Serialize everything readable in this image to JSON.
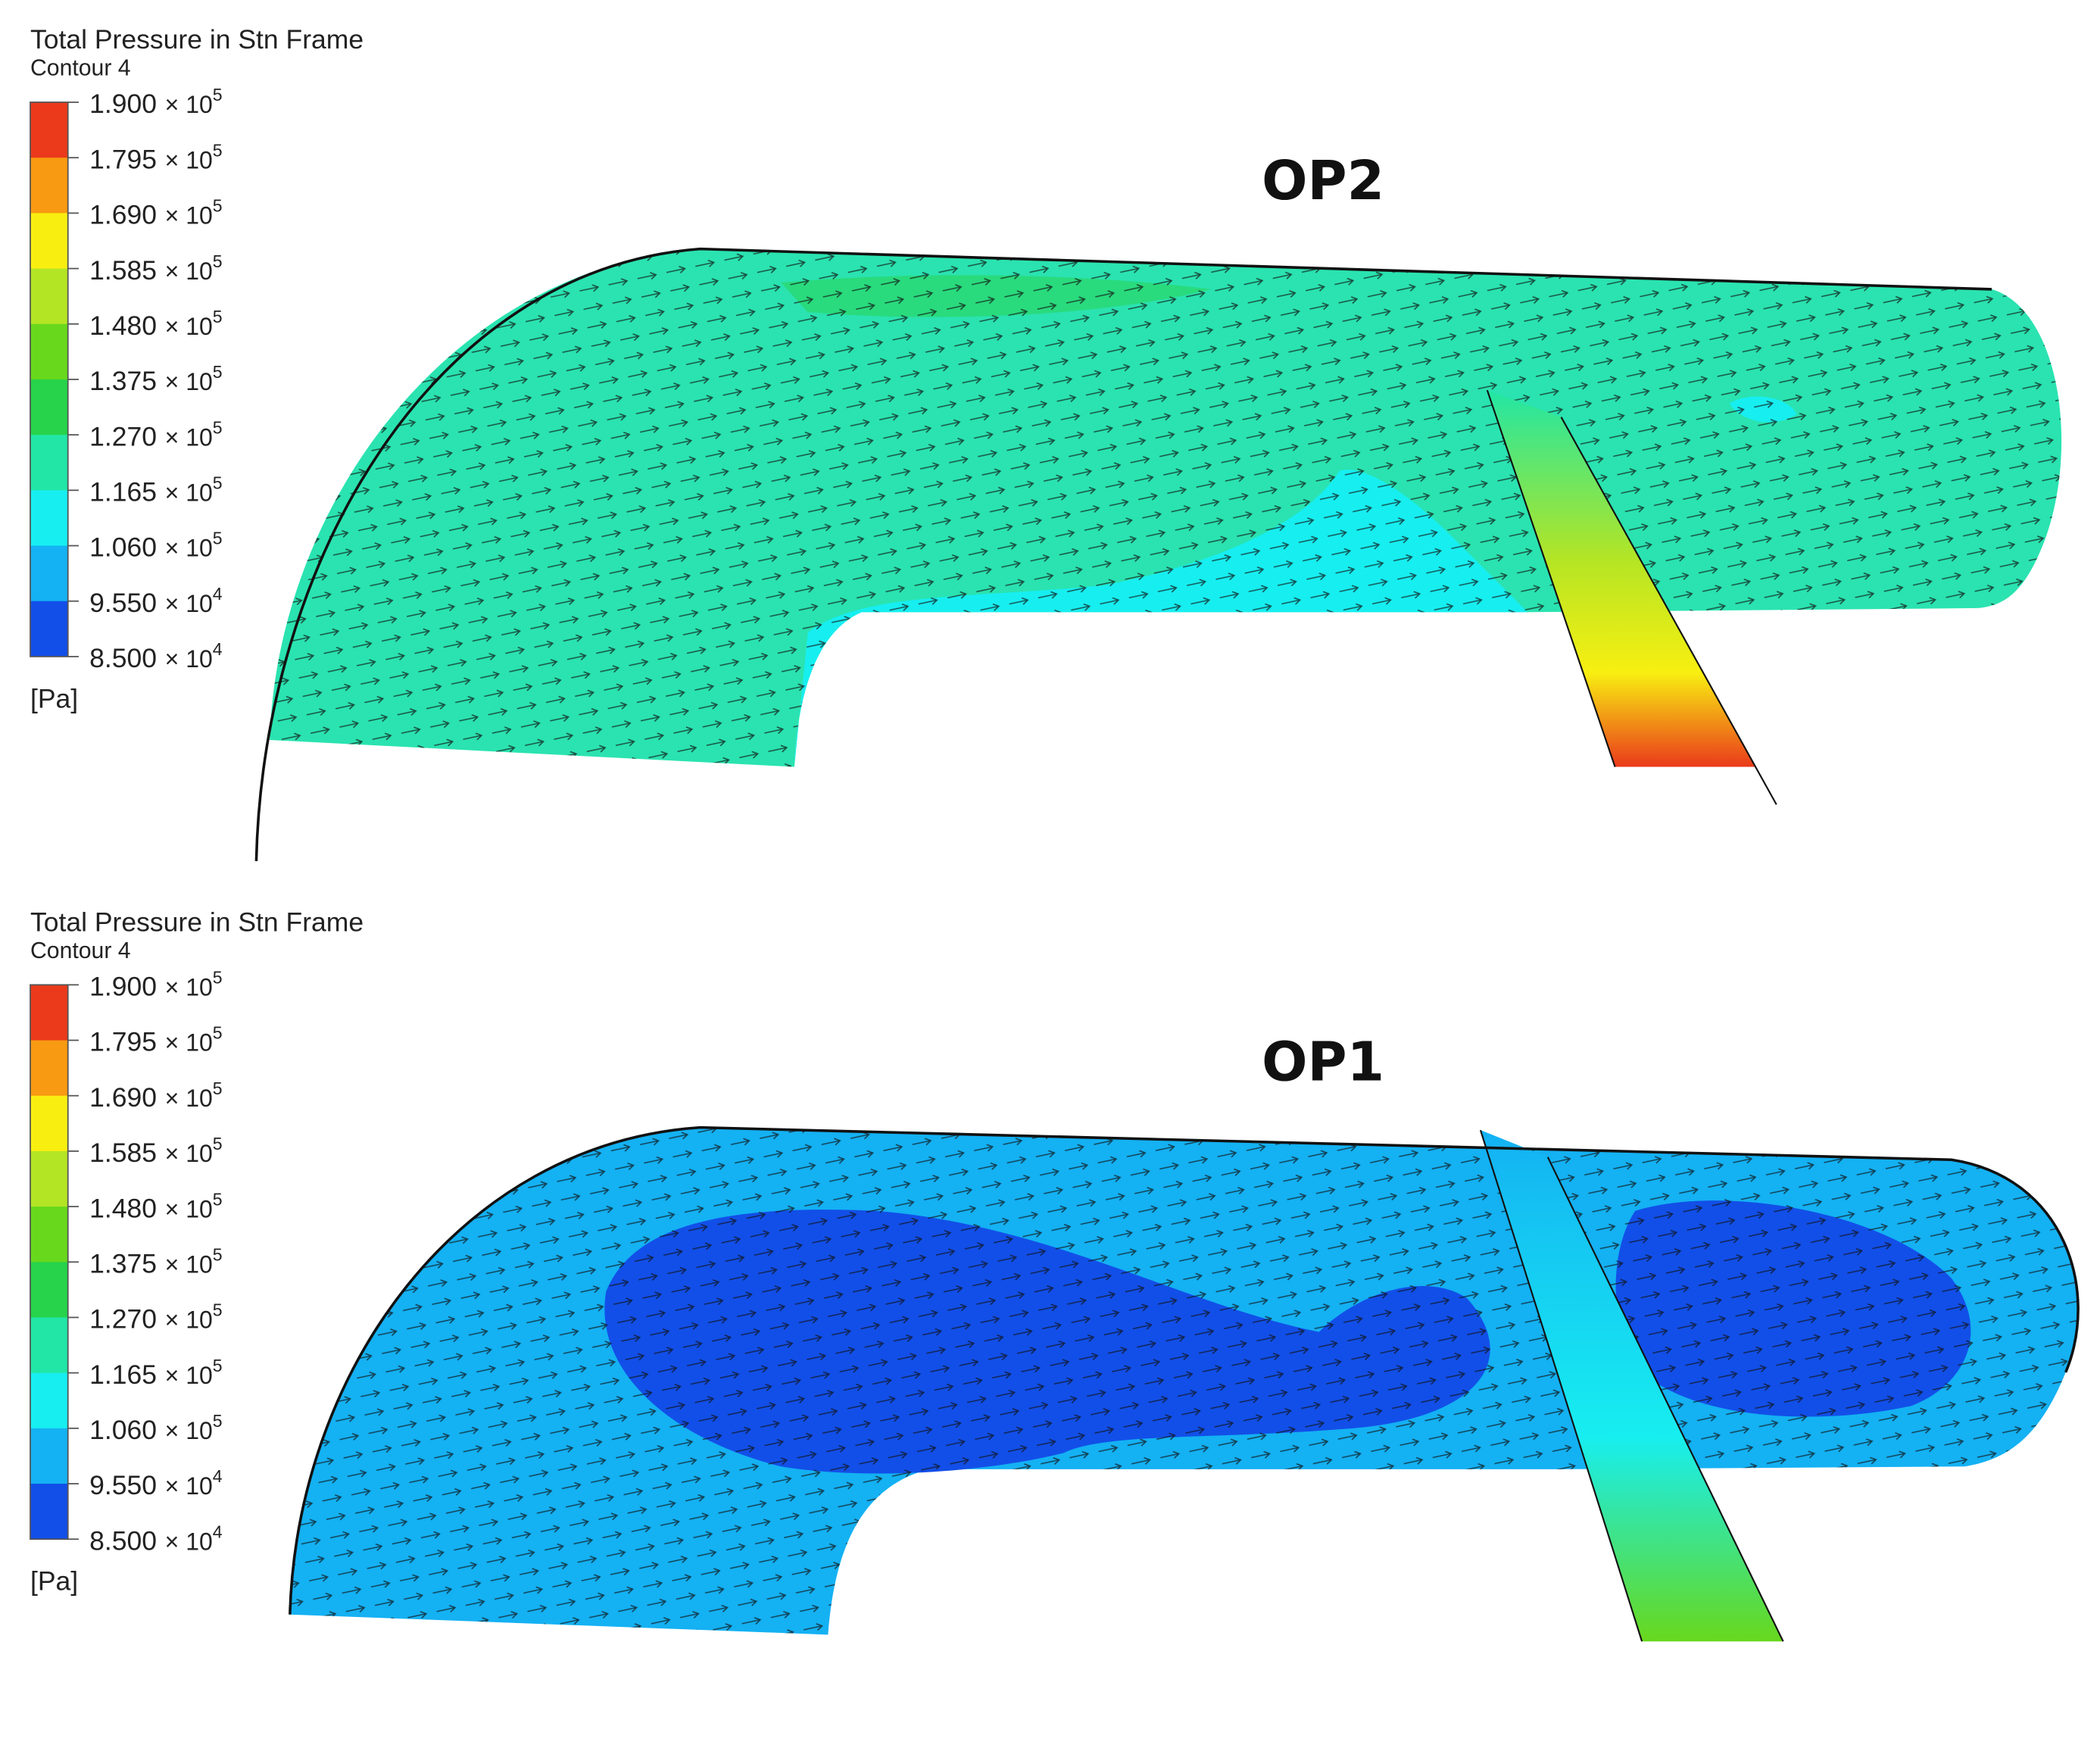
{
  "panels": [
    {
      "legend": {
        "title": "Total Pressure in Stn Frame",
        "subtitle": "Contour 4",
        "ticks": [
          {
            "mantissa": "1.900",
            "times": "× 10",
            "exponent": "5"
          },
          {
            "mantissa": "1.795",
            "times": "× 10",
            "exponent": "5"
          },
          {
            "mantissa": "1.690",
            "times": "× 10",
            "exponent": "5"
          },
          {
            "mantissa": "1.585",
            "times": "× 10",
            "exponent": "5"
          },
          {
            "mantissa": "1.480",
            "times": "× 10",
            "exponent": "5"
          },
          {
            "mantissa": "1.375",
            "times": "× 10",
            "exponent": "5"
          },
          {
            "mantissa": "1.270",
            "times": "× 10",
            "exponent": "5"
          },
          {
            "mantissa": "1.165",
            "times": "× 10",
            "exponent": "5"
          },
          {
            "mantissa": "1.060",
            "times": "× 10",
            "exponent": "5"
          },
          {
            "mantissa": "9.550",
            "times": "× 10",
            "exponent": "4"
          },
          {
            "mantissa": "8.500",
            "times": "× 10",
            "exponent": "4"
          }
        ],
        "unit": "[Pa]",
        "colors": [
          "#ea3a1b",
          "#f89a12",
          "#f8ef11",
          "#b4e524",
          "#68d81d",
          "#27d34a",
          "#21e6a5",
          "#17eef0",
          "#14b1f3",
          "#124fe8"
        ]
      },
      "label": "OP2"
    },
    {
      "legend": {
        "title": "Total Pressure in Stn Frame",
        "subtitle": "Contour 4",
        "ticks": [
          {
            "mantissa": "1.900",
            "times": "× 10",
            "exponent": "5"
          },
          {
            "mantissa": "1.795",
            "times": "× 10",
            "exponent": "5"
          },
          {
            "mantissa": "1.690",
            "times": "× 10",
            "exponent": "5"
          },
          {
            "mantissa": "1.585",
            "times": "× 10",
            "exponent": "5"
          },
          {
            "mantissa": "1.480",
            "times": "× 10",
            "exponent": "5"
          },
          {
            "mantissa": "1.375",
            "times": "× 10",
            "exponent": "5"
          },
          {
            "mantissa": "1.270",
            "times": "× 10",
            "exponent": "5"
          },
          {
            "mantissa": "1.165",
            "times": "× 10",
            "exponent": "5"
          },
          {
            "mantissa": "1.060",
            "times": "× 10",
            "exponent": "5"
          },
          {
            "mantissa": "9.550",
            "times": "× 10",
            "exponent": "4"
          },
          {
            "mantissa": "8.500",
            "times": "× 10",
            "exponent": "4"
          }
        ],
        "unit": "[Pa]",
        "colors": [
          "#ea3a1b",
          "#f89a12",
          "#f8ef11",
          "#b4e524",
          "#68d81d",
          "#27d34a",
          "#21e6a5",
          "#17eef0",
          "#14b1f3",
          "#124fe8"
        ]
      },
      "label": "OP1"
    }
  ]
}
